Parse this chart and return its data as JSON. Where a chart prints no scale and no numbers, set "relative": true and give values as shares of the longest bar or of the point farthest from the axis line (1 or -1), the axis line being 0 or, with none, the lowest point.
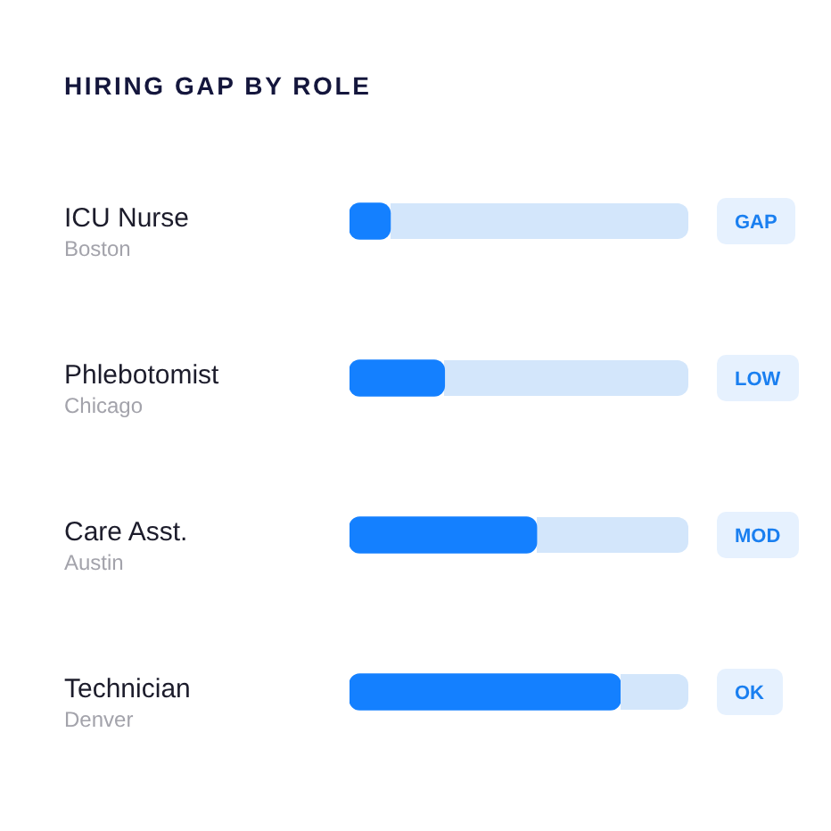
{
  "chart_data": {
    "type": "bar",
    "orientation": "horizontal",
    "relative": true,
    "title": "HIRING GAP BY ROLE",
    "categories": [
      "ICU Nurse\nBoston",
      "Phlebotomist\nChicago",
      "Care Asst.\nAustin",
      "Technician\nDenver"
    ],
    "values": [
      0.15,
      0.35,
      0.69,
      1
    ],
    "color": "#1480ff",
    "annotations": [
      "GAP",
      "LOW",
      "MOD",
      "OK"
    ]
  }
}
